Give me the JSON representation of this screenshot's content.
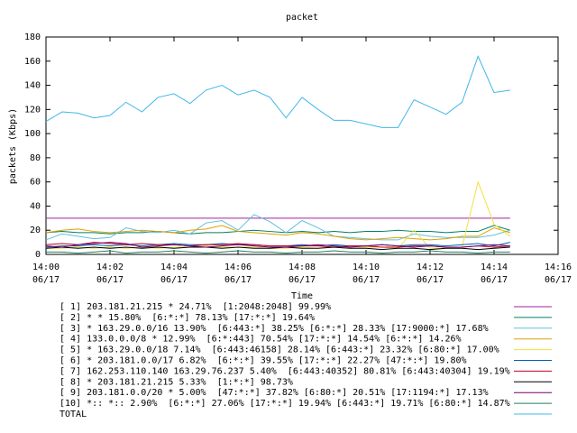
{
  "chart_data": {
    "type": "line",
    "title": "packet",
    "x_label": "Time",
    "y_label": "packets (Kbps)",
    "x": [
      0,
      0.5,
      1,
      1.5,
      2,
      2.5,
      3,
      3.5,
      4,
      4.5,
      5,
      5.5,
      6,
      6.5,
      7,
      7.5,
      8,
      8.5,
      9,
      9.5,
      10,
      10.5,
      11,
      11.5,
      12,
      12.5,
      13,
      13.5,
      14,
      14.5
    ],
    "xlim": [
      0,
      16
    ],
    "xticks": [
      {
        "value": 0,
        "label": "14:00\n06/17"
      },
      {
        "value": 2,
        "label": "14:02\n06/17"
      },
      {
        "value": 4,
        "label": "14:04\n06/17"
      },
      {
        "value": 6,
        "label": "14:06\n06/17"
      },
      {
        "value": 8,
        "label": "14:08\n06/17"
      },
      {
        "value": 10,
        "label": "14:10\n06/17"
      },
      {
        "value": 12,
        "label": "14:12\n06/17"
      },
      {
        "value": 14,
        "label": "14:14\n06/17"
      },
      {
        "value": 16,
        "label": "14:16\n06/17"
      }
    ],
    "ylim": [
      0,
      180
    ],
    "yticks": [
      0,
      20,
      40,
      60,
      80,
      100,
      120,
      140,
      160,
      180
    ],
    "series": [
      {
        "name": "[ 1] 203.181.21.215 * 24.71%  [1:2048:2048] 99.99%",
        "color": "#a020a0",
        "values": [
          30,
          30,
          30,
          30,
          30,
          30,
          30,
          30,
          30,
          30,
          30,
          30,
          30,
          30,
          30,
          30,
          30,
          30,
          30,
          30,
          30,
          30,
          30,
          30,
          30,
          30,
          30,
          30,
          30,
          30
        ]
      },
      {
        "name": "[ 2] * * 15.80%  [6:*:*] 78.13% [17:*:*] 19.64%",
        "color": "#008060",
        "values": [
          18,
          19,
          18,
          18,
          17,
          18,
          18,
          19,
          18,
          17,
          18,
          18,
          19,
          20,
          19,
          18,
          19,
          18,
          19,
          18,
          19,
          19,
          20,
          19,
          19,
          18,
          19,
          19,
          24,
          20
        ]
      },
      {
        "name": "[ 3] * 163.29.0.0/16 13.90%  [6:443:*] 38.25% [6:*:*] 28.33% [17:9000:*] 17.68%",
        "color": "#60c0e0",
        "values": [
          12,
          17,
          15,
          13,
          14,
          22,
          19,
          18,
          20,
          17,
          26,
          28,
          20,
          33,
          27,
          18,
          28,
          22,
          15,
          14,
          13,
          12,
          12,
          17,
          15,
          14,
          14,
          14,
          16,
          20
        ]
      },
      {
        "name": "[ 4] 133.0.0.0/8 * 12.99%  [6:*:443] 70.54% [17:*:*] 14.54% [6:*:*] 14.26%",
        "color": "#e0a000",
        "values": [
          18,
          20,
          21,
          19,
          18,
          19,
          20,
          19,
          18,
          20,
          21,
          24,
          19,
          18,
          17,
          16,
          18,
          17,
          15,
          13,
          12,
          13,
          14,
          13,
          12,
          13,
          15,
          15,
          22,
          18
        ]
      },
      {
        "name": "[ 5] * 163.29.0.0/18 7.14%  [6:443:46158] 28.14% [6:443:*] 23.32% [6:80:*] 17.00%",
        "color": "#f0e040",
        "values": [
          5,
          5,
          6,
          5,
          6,
          5,
          6,
          5,
          6,
          6,
          7,
          6,
          6,
          6,
          5,
          5,
          6,
          5,
          6,
          5,
          6,
          6,
          5,
          20,
          5,
          5,
          6,
          60,
          25,
          15
        ]
      },
      {
        "name": "[ 6] * 203.181.0.0/17 6.82%  [6:*:*] 39.55% [17:*:*] 22.27% [47:*:*] 19.80%",
        "color": "#0060b0",
        "values": [
          6,
          7,
          7,
          8,
          7,
          8,
          7,
          8,
          9,
          8,
          8,
          9,
          8,
          8,
          7,
          7,
          8,
          7,
          8,
          7,
          7,
          8,
          7,
          8,
          8,
          7,
          8,
          9,
          7,
          10
        ]
      },
      {
        "name": "[ 7] 162.253.110.140 163.29.76.237 5.40%  [6:443:40352] 80.81% [6:443:40304] 19.19%",
        "color": "#c00020",
        "values": [
          8,
          9,
          8,
          10,
          9,
          8,
          9,
          8,
          8,
          7,
          8,
          8,
          9,
          8,
          7,
          7,
          7,
          7,
          6,
          7,
          7,
          6,
          6,
          7,
          7,
          6,
          6,
          7,
          6,
          7
        ]
      },
      {
        "name": "[ 8] * 203.181.21.215 5.33%  [1:*:*] 98.73%",
        "color": "#000000",
        "values": [
          5,
          6,
          5,
          6,
          5,
          6,
          5,
          6,
          5,
          6,
          6,
          5,
          6,
          5,
          5,
          6,
          5,
          5,
          6,
          5,
          5,
          4,
          5,
          5,
          4,
          5,
          5,
          4,
          5,
          6
        ]
      },
      {
        "name": "[ 9] 203.181.0.0/20 * 5.00%  [47:*:*] 37.82% [6:80:*] 20.51% [17:1194:*] 17.13%",
        "color": "#700070",
        "values": [
          7,
          6,
          8,
          9,
          10,
          9,
          6,
          7,
          8,
          7,
          6,
          7,
          8,
          7,
          6,
          6,
          7,
          8,
          7,
          6,
          7,
          8,
          7,
          6,
          7,
          6,
          6,
          7,
          8,
          7
        ]
      },
      {
        "name": "[10] *:: *:: 2.90%  [6:*:*] 27.06% [17:*:*] 19.94% [6:443:*] 19.71% [6:80:*] 14.87%",
        "color": "#208060",
        "values": [
          2,
          2,
          1,
          2,
          3,
          1,
          2,
          2,
          3,
          2,
          1,
          2,
          3,
          2,
          2,
          1,
          2,
          2,
          3,
          2,
          2,
          1,
          2,
          2,
          3,
          2,
          2,
          1,
          2,
          2
        ]
      },
      {
        "name": "TOTAL",
        "color": "#40b8e8",
        "values": [
          110,
          118,
          117,
          113,
          115,
          126,
          118,
          130,
          133,
          125,
          136,
          140,
          132,
          136,
          130,
          113,
          130,
          120,
          111,
          111,
          108,
          105,
          105,
          128,
          122,
          116,
          126,
          164,
          134,
          136
        ]
      }
    ]
  }
}
